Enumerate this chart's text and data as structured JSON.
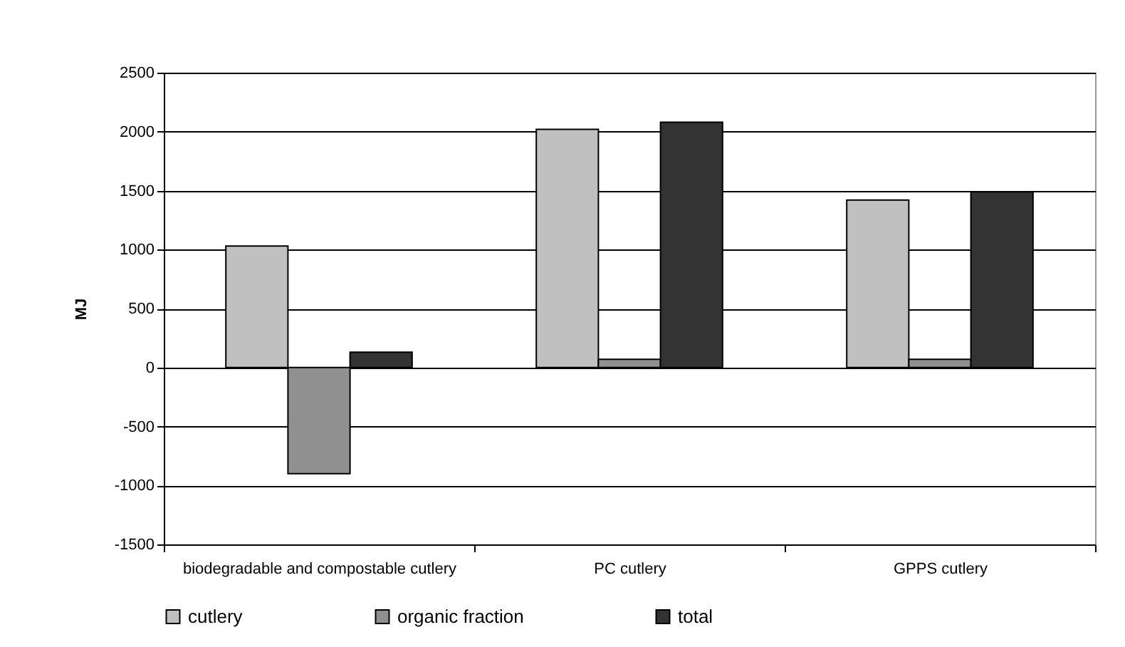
{
  "chart_data": {
    "type": "bar",
    "ylabel": "MJ",
    "categories": [
      "biodegradable and compostable cutlery",
      "PC cutlery",
      "GPPS cutlery"
    ],
    "series": [
      {
        "name": "cutlery",
        "color": "#c0c0c0",
        "values": [
          1030,
          2020,
          1420
        ]
      },
      {
        "name": "organic fraction",
        "color": "#909090",
        "values": [
          -900,
          70,
          70
        ]
      },
      {
        "name": "total",
        "color": "#333333",
        "values": [
          130,
          2080,
          1490
        ]
      }
    ],
    "ylim": [
      -1500,
      2500
    ],
    "yticks": [
      -1500,
      -1000,
      -500,
      0,
      500,
      1000,
      1500,
      2000,
      2500
    ],
    "grid": "y",
    "legend": "bottom"
  }
}
